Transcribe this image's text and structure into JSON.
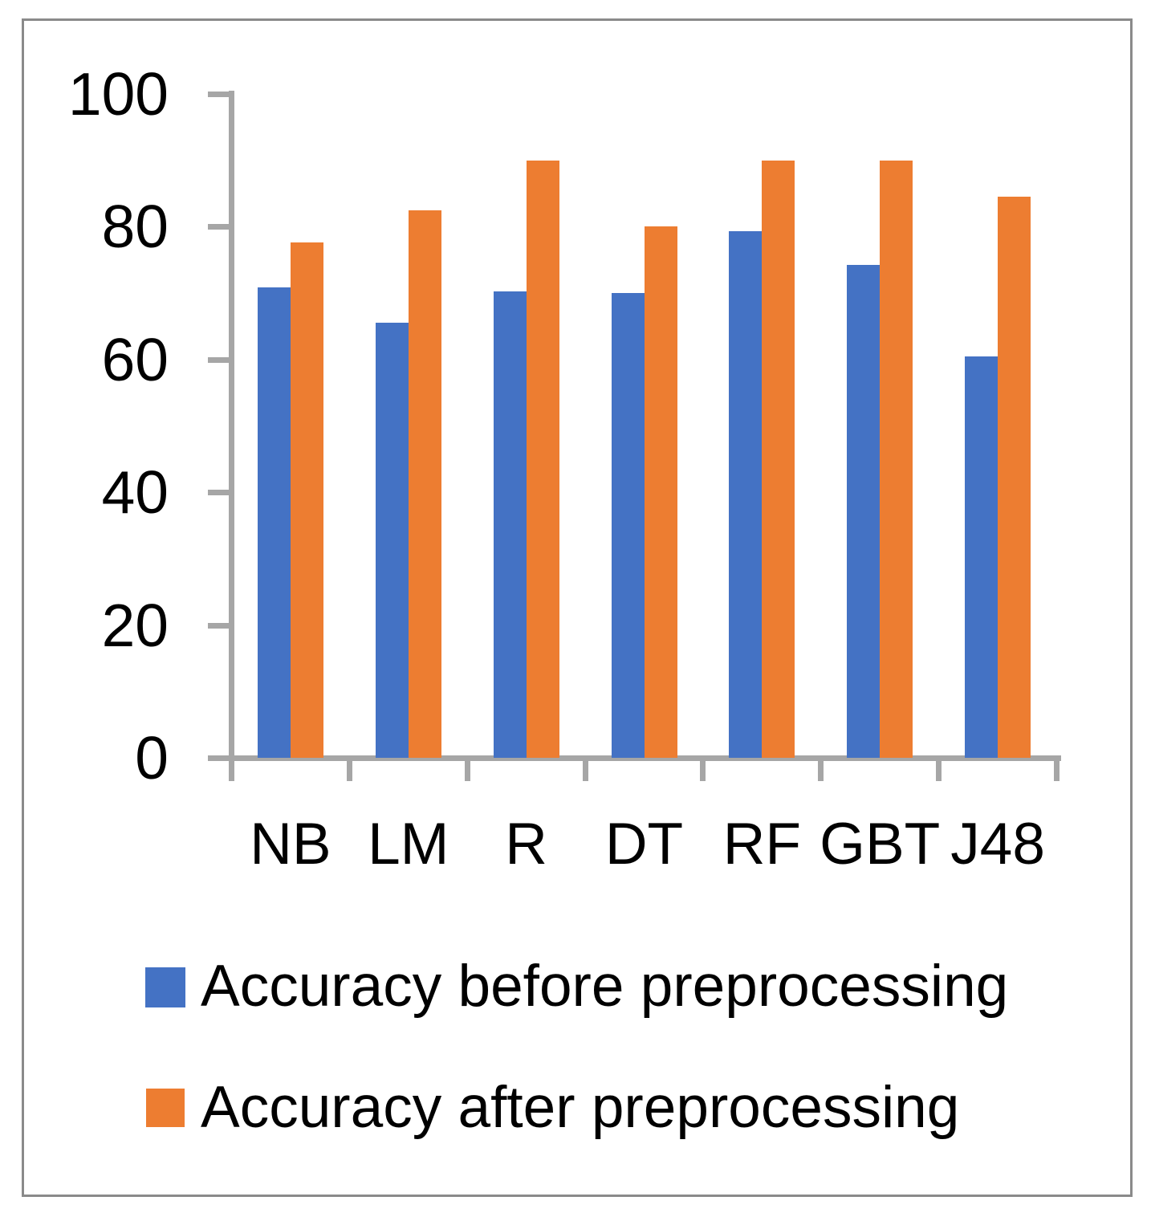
{
  "chart_data": {
    "type": "bar",
    "title": "",
    "xlabel": "",
    "ylabel": "",
    "categories": [
      "NB",
      "LM",
      "R",
      "DT",
      "RF",
      "GBT",
      "J48"
    ],
    "series": [
      {
        "name": "Accuracy before preprocessing",
        "color": "#4472C4",
        "values": [
          70.8,
          65.5,
          70.3,
          70.0,
          79.3,
          74.2,
          60.4
        ]
      },
      {
        "name": "Accuracy after preprocessing",
        "color": "#ED7D31",
        "values": [
          77.6,
          82.5,
          90.0,
          80.0,
          90.0,
          90.0,
          84.5
        ]
      }
    ],
    "ylim": [
      0,
      100
    ],
    "yticks": [
      0,
      20,
      40,
      60,
      80,
      100
    ],
    "grid": false,
    "legend_position": "bottom-left",
    "axis_color": "#a6a6a6",
    "frame_color": "#8a8a8a",
    "text_color": "#000000"
  }
}
